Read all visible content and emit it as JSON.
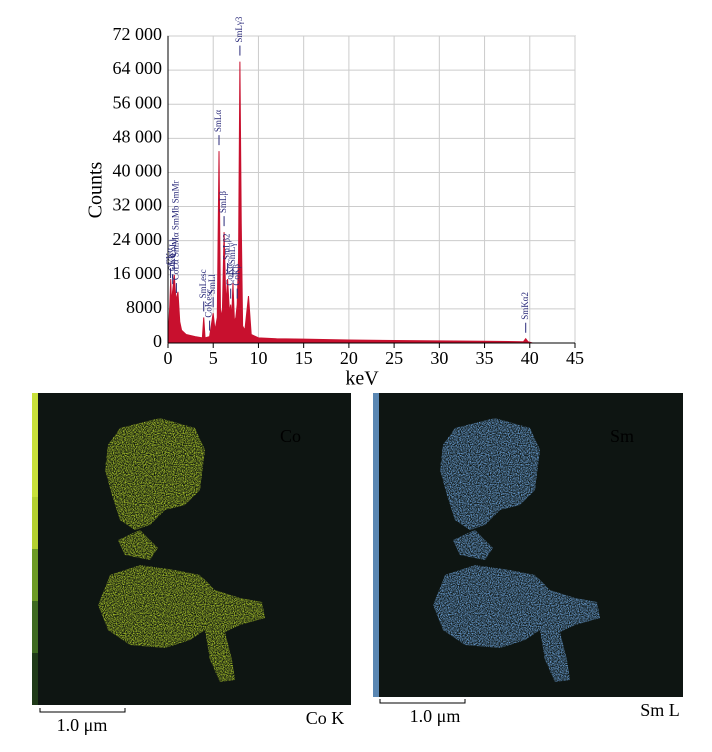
{
  "chart_data": {
    "type": "area",
    "x_label": "keV",
    "y_label": "Counts",
    "x": [
      0,
      0.2,
      0.3,
      0.4,
      0.5,
      0.7,
      0.78,
      0.9,
      1.1,
      1.3,
      1.5,
      2,
      3,
      3.8,
      3.95,
      4.1,
      4.6,
      4.99,
      5.2,
      5.45,
      5.64,
      5.8,
      6.0,
      6.2,
      6.4,
      6.59,
      6.8,
      6.93,
      7.05,
      7.18,
      7.35,
      7.5,
      7.65,
      7.8,
      7.95,
      8.1,
      8.25,
      8.5,
      8.9,
      9.2,
      10,
      12,
      15,
      20,
      25,
      30,
      35,
      39.3,
      39.55,
      39.8,
      40.3
    ],
    "values": [
      0,
      9000,
      15000,
      9000,
      12000,
      16000,
      13000,
      10000,
      12000,
      5000,
      3000,
      2000,
      1500,
      1200,
      6000,
      1200,
      1500,
      7000,
      3000,
      6000,
      45000,
      8000,
      6000,
      26000,
      9000,
      15000,
      7000,
      9000,
      6000,
      14000,
      5000,
      6000,
      9000,
      20000,
      66000,
      28000,
      4000,
      3000,
      11000,
      2000,
      1200,
      1000,
      900,
      700,
      600,
      500,
      400,
      300,
      1000,
      300,
      0
    ],
    "color": "#c8102e",
    "xlim": [
      0,
      45
    ],
    "xticks": [
      0,
      5,
      10,
      15,
      20,
      25,
      30,
      35,
      40,
      45
    ],
    "ylim": [
      0,
      72000
    ],
    "yticks": [
      0,
      8000,
      {
        "value": 16000,
        "label": "16 000"
      },
      {
        "value": 24000,
        "label": "24 000"
      },
      {
        "value": 32000,
        "label": "32 000"
      },
      {
        "value": 40000,
        "label": "40 000"
      },
      {
        "value": 48000,
        "label": "48 000"
      },
      {
        "value": 56000,
        "label": "56 000"
      },
      {
        "value": 64000,
        "label": "64 000"
      },
      {
        "value": 72000,
        "label": "72 000"
      }
    ],
    "grid": true,
    "annotations": [
      {
        "text": "CKα",
        "x": 0.28
      },
      {
        "text": "OKα",
        "x": 0.52
      },
      {
        "text": "CoLl",
        "x": 0.68
      },
      {
        "text": "CoLα SmMα SmMb SmMr",
        "x": 0.93
      },
      {
        "text": "SmLesc",
        "x": 3.95
      },
      {
        "text": "CoKesc",
        "x": 4.6
      },
      {
        "text": "SmLl",
        "x": 4.99
      },
      {
        "text": "SmLα",
        "x": 5.64
      },
      {
        "text": "SmLβ",
        "x": 6.2
      },
      {
        "text": "SmLβ2",
        "x": 6.59
      },
      {
        "text": "CoKα",
        "x": 6.93
      },
      {
        "text": "SmLγ",
        "x": 7.18
      },
      {
        "text": "CoKβ",
        "x": 7.65
      },
      {
        "text": "SmLγ3",
        "x": 7.95
      },
      {
        "text": "SmKα2",
        "x": 39.55
      }
    ]
  },
  "maps": [
    {
      "element": "Co",
      "line": "Co K",
      "scale_bar": "1.0 μm",
      "color": "#b0cc2a"
    },
    {
      "element": "Sm",
      "line": "Sm L",
      "scale_bar": "1.0 μm",
      "color": "#6ea4dc"
    }
  ]
}
